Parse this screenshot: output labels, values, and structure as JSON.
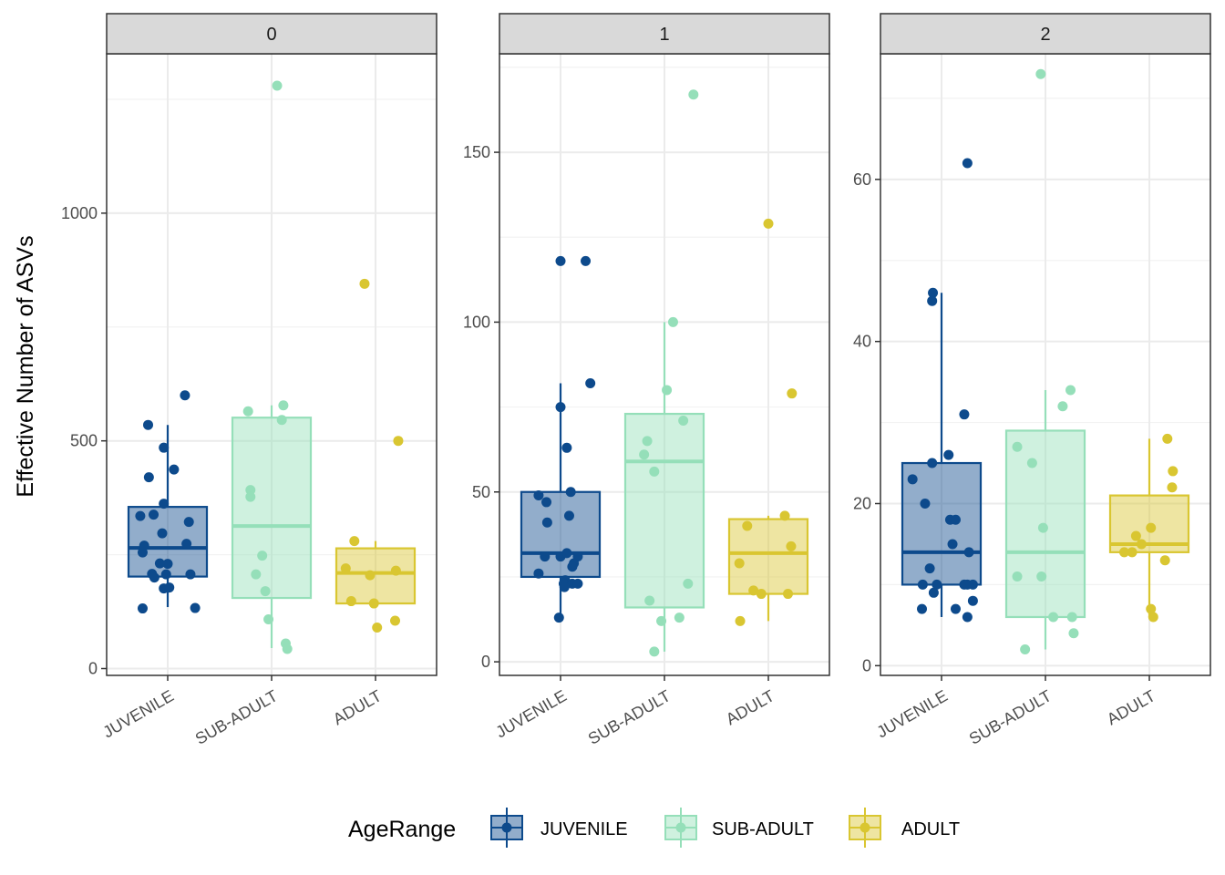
{
  "chart_data": {
    "type": "box",
    "ylabel": "Effective Number of ASVs",
    "xlabel": "",
    "categories": [
      "JUVENILE",
      "SUB-ADULT",
      "ADULT"
    ],
    "colors": {
      "JUVENILE": "#0d4a8c",
      "SUB-ADULT": "#95dfb9",
      "ADULT": "#d9c631"
    },
    "grid": true,
    "legend": {
      "title": "AgeRange",
      "position": "bottom",
      "items": [
        "JUVENILE",
        "SUB-ADULT",
        "ADULT"
      ]
    },
    "facets": [
      {
        "label": "0",
        "ylim": [
          -15,
          1350
        ],
        "yticks": [
          0,
          500,
          1000
        ],
        "ytick_labels": [
          "0",
          "500",
          "1000"
        ],
        "boxes": {
          "JUVENILE": {
            "min": 135,
            "q1": 202,
            "median": 265,
            "q3": 355,
            "max": 535
          },
          "SUB-ADULT": {
            "min": 45,
            "q1": 155,
            "median": 313,
            "q3": 551,
            "max": 578
          },
          "ADULT": {
            "min": 140,
            "q1": 143,
            "median": 210,
            "q3": 264,
            "max": 280
          }
        },
        "points": {
          "JUVENILE": [
            {
              "dx": -0.35,
              "y": 335
            },
            {
              "dx": -0.18,
              "y": 338
            },
            {
              "dx": -0.32,
              "y": 132
            },
            {
              "dx": -0.25,
              "y": 535
            },
            {
              "dx": -0.24,
              "y": 420
            },
            {
              "dx": -0.05,
              "y": 485
            },
            {
              "dx": 0.08,
              "y": 437
            },
            {
              "dx": 0.22,
              "y": 600
            },
            {
              "dx": 0.35,
              "y": 133
            },
            {
              "dx": -0.05,
              "y": 362
            },
            {
              "dx": -0.07,
              "y": 297
            },
            {
              "dx": 0.27,
              "y": 322
            },
            {
              "dx": 0.24,
              "y": 274
            },
            {
              "dx": -0.32,
              "y": 255
            },
            {
              "dx": -0.3,
              "y": 270
            },
            {
              "dx": -0.1,
              "y": 231
            },
            {
              "dx": 0.0,
              "y": 230
            },
            {
              "dx": -0.2,
              "y": 208
            },
            {
              "dx": -0.17,
              "y": 200
            },
            {
              "dx": -0.02,
              "y": 207
            },
            {
              "dx": 0.29,
              "y": 207
            },
            {
              "dx": -0.05,
              "y": 176
            },
            {
              "dx": 0.02,
              "y": 178
            }
          ],
          "SUB-ADULT": [
            {
              "dx": 0.07,
              "y": 1280
            },
            {
              "dx": -0.3,
              "y": 565
            },
            {
              "dx": 0.15,
              "y": 578
            },
            {
              "dx": 0.13,
              "y": 546
            },
            {
              "dx": -0.27,
              "y": 392
            },
            {
              "dx": -0.27,
              "y": 377
            },
            {
              "dx": -0.12,
              "y": 248
            },
            {
              "dx": -0.2,
              "y": 207
            },
            {
              "dx": -0.08,
              "y": 170
            },
            {
              "dx": -0.04,
              "y": 108
            },
            {
              "dx": 0.18,
              "y": 55
            },
            {
              "dx": 0.2,
              "y": 43
            }
          ],
          "ADULT": [
            {
              "dx": -0.14,
              "y": 845
            },
            {
              "dx": 0.29,
              "y": 500
            },
            {
              "dx": -0.27,
              "y": 280
            },
            {
              "dx": -0.38,
              "y": 220
            },
            {
              "dx": 0.26,
              "y": 215
            },
            {
              "dx": -0.07,
              "y": 205
            },
            {
              "dx": -0.31,
              "y": 148
            },
            {
              "dx": -0.02,
              "y": 143
            },
            {
              "dx": 0.25,
              "y": 105
            },
            {
              "dx": 0.02,
              "y": 90
            }
          ]
        }
      },
      {
        "label": "1",
        "ylim": [
          -4,
          179
        ],
        "yticks": [
          0,
          50,
          100,
          150
        ],
        "ytick_labels": [
          "0",
          "50",
          "100",
          "150"
        ],
        "boxes": {
          "JUVENILE": {
            "min": 12,
            "q1": 25,
            "median": 32,
            "q3": 50,
            "max": 82
          },
          "SUB-ADULT": {
            "min": 3,
            "q1": 16,
            "median": 59,
            "q3": 73,
            "max": 100
          },
          "ADULT": {
            "min": 12,
            "q1": 20,
            "median": 32,
            "q3": 42,
            "max": 43
          }
        },
        "points": {
          "JUVENILE": [
            {
              "dx": 0.0,
              "y": 118
            },
            {
              "dx": 0.32,
              "y": 118
            },
            {
              "dx": 0.38,
              "y": 82
            },
            {
              "dx": 0.0,
              "y": 75
            },
            {
              "dx": 0.08,
              "y": 63
            },
            {
              "dx": -0.28,
              "y": 49
            },
            {
              "dx": -0.18,
              "y": 47
            },
            {
              "dx": 0.13,
              "y": 50
            },
            {
              "dx": 0.11,
              "y": 43
            },
            {
              "dx": -0.17,
              "y": 41
            },
            {
              "dx": -0.2,
              "y": 31
            },
            {
              "dx": 0.0,
              "y": 31
            },
            {
              "dx": 0.08,
              "y": 32
            },
            {
              "dx": 0.22,
              "y": 31
            },
            {
              "dx": 0.17,
              "y": 29
            },
            {
              "dx": 0.15,
              "y": 28
            },
            {
              "dx": -0.28,
              "y": 26
            },
            {
              "dx": 0.06,
              "y": 24
            },
            {
              "dx": 0.04,
              "y": 23
            },
            {
              "dx": 0.15,
              "y": 23
            },
            {
              "dx": 0.22,
              "y": 23
            },
            {
              "dx": 0.05,
              "y": 22
            },
            {
              "dx": -0.02,
              "y": 13
            }
          ],
          "SUB-ADULT": [
            {
              "dx": 0.37,
              "y": 167
            },
            {
              "dx": 0.11,
              "y": 100
            },
            {
              "dx": 0.03,
              "y": 80
            },
            {
              "dx": 0.24,
              "y": 71
            },
            {
              "dx": -0.22,
              "y": 65
            },
            {
              "dx": -0.26,
              "y": 61
            },
            {
              "dx": -0.13,
              "y": 56
            },
            {
              "dx": 0.3,
              "y": 23
            },
            {
              "dx": -0.19,
              "y": 18
            },
            {
              "dx": 0.19,
              "y": 13
            },
            {
              "dx": -0.04,
              "y": 12
            },
            {
              "dx": -0.13,
              "y": 3
            }
          ],
          "ADULT": [
            {
              "dx": 0.0,
              "y": 129
            },
            {
              "dx": 0.3,
              "y": 79
            },
            {
              "dx": 0.21,
              "y": 43
            },
            {
              "dx": -0.27,
              "y": 40
            },
            {
              "dx": 0.29,
              "y": 34
            },
            {
              "dx": -0.37,
              "y": 29
            },
            {
              "dx": -0.19,
              "y": 21
            },
            {
              "dx": -0.09,
              "y": 20
            },
            {
              "dx": 0.25,
              "y": 20
            },
            {
              "dx": -0.36,
              "y": 12
            }
          ]
        }
      },
      {
        "label": "2",
        "ylim": [
          -1.2,
          75.5
        ],
        "yticks": [
          0,
          20,
          40,
          60
        ],
        "ytick_labels": [
          "0",
          "20",
          "40",
          "60"
        ],
        "boxes": {
          "JUVENILE": {
            "min": 6,
            "q1": 10,
            "median": 14,
            "q3": 25,
            "max": 46
          },
          "SUB-ADULT": {
            "min": 2,
            "q1": 6,
            "median": 14,
            "q3": 29,
            "max": 34
          },
          "ADULT": {
            "min": 6,
            "q1": 14,
            "median": 15,
            "q3": 21,
            "max": 28
          }
        },
        "points": {
          "JUVENILE": [
            {
              "dx": 0.33,
              "y": 62
            },
            {
              "dx": -0.11,
              "y": 46
            },
            {
              "dx": -0.12,
              "y": 45
            },
            {
              "dx": 0.29,
              "y": 31
            },
            {
              "dx": 0.09,
              "y": 26
            },
            {
              "dx": -0.12,
              "y": 25
            },
            {
              "dx": -0.37,
              "y": 23
            },
            {
              "dx": -0.21,
              "y": 20
            },
            {
              "dx": 0.11,
              "y": 18
            },
            {
              "dx": 0.18,
              "y": 18
            },
            {
              "dx": 0.14,
              "y": 15
            },
            {
              "dx": 0.35,
              "y": 14
            },
            {
              "dx": -0.15,
              "y": 12
            },
            {
              "dx": 0.33,
              "y": 10
            },
            {
              "dx": 0.4,
              "y": 10
            },
            {
              "dx": 0.29,
              "y": 10
            },
            {
              "dx": -0.24,
              "y": 10
            },
            {
              "dx": -0.06,
              "y": 10
            },
            {
              "dx": -0.1,
              "y": 9
            },
            {
              "dx": 0.4,
              "y": 8
            },
            {
              "dx": 0.18,
              "y": 7
            },
            {
              "dx": -0.25,
              "y": 7
            },
            {
              "dx": 0.33,
              "y": 6
            }
          ],
          "SUB-ADULT": [
            {
              "dx": -0.06,
              "y": 73
            },
            {
              "dx": 0.32,
              "y": 34
            },
            {
              "dx": 0.22,
              "y": 32
            },
            {
              "dx": -0.36,
              "y": 27
            },
            {
              "dx": -0.17,
              "y": 25
            },
            {
              "dx": -0.03,
              "y": 17
            },
            {
              "dx": -0.36,
              "y": 11
            },
            {
              "dx": -0.05,
              "y": 11
            },
            {
              "dx": 0.34,
              "y": 6
            },
            {
              "dx": 0.1,
              "y": 6
            },
            {
              "dx": 0.36,
              "y": 4
            },
            {
              "dx": -0.26,
              "y": 2
            }
          ],
          "ADULT": [
            {
              "dx": 0.23,
              "y": 28
            },
            {
              "dx": 0.3,
              "y": 24
            },
            {
              "dx": 0.29,
              "y": 22
            },
            {
              "dx": 0.02,
              "y": 17
            },
            {
              "dx": -0.17,
              "y": 16
            },
            {
              "dx": -0.1,
              "y": 15
            },
            {
              "dx": -0.32,
              "y": 14
            },
            {
              "dx": -0.22,
              "y": 14
            },
            {
              "dx": 0.2,
              "y": 13
            },
            {
              "dx": 0.02,
              "y": 7
            },
            {
              "dx": 0.05,
              "y": 6
            }
          ]
        }
      }
    ]
  }
}
